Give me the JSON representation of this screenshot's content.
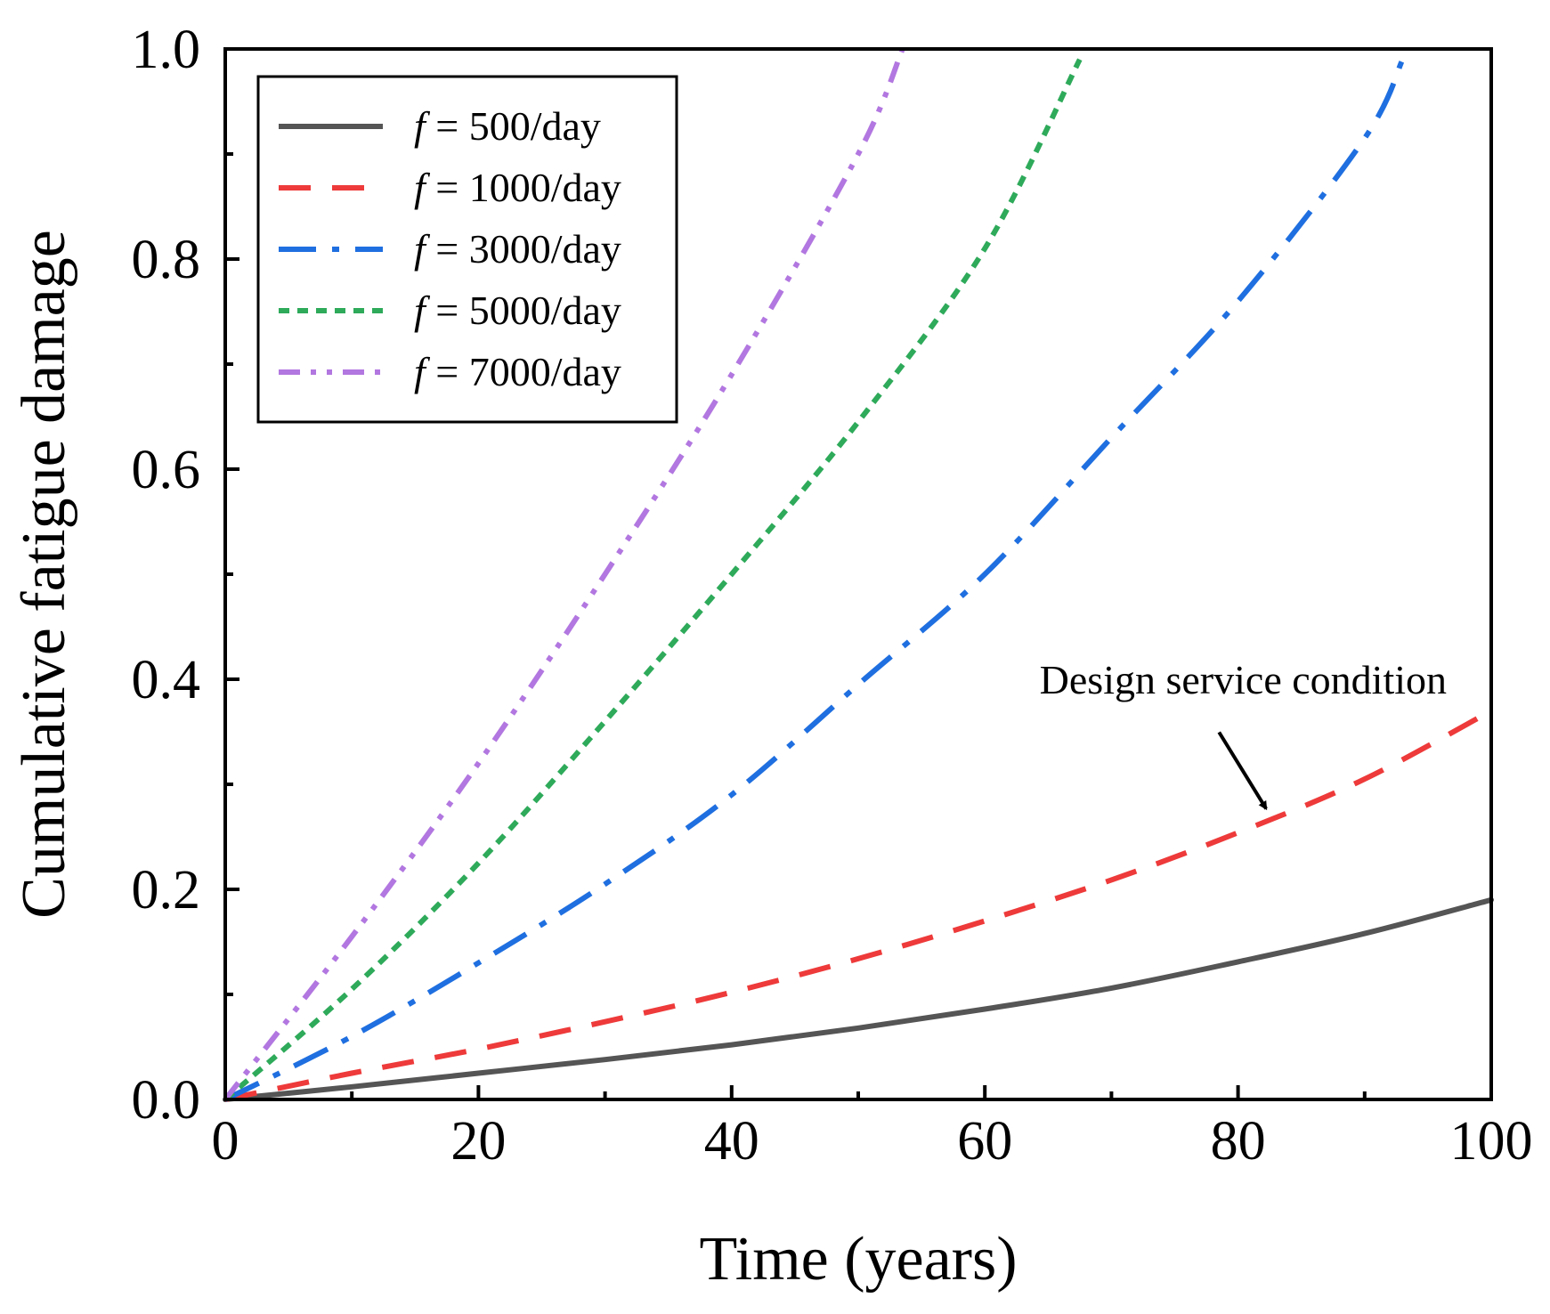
{
  "chart_data": {
    "type": "line",
    "title": "",
    "xlabel": "Time (years)",
    "ylabel": "Cumulative fatigue damage",
    "xlim": [
      0,
      100
    ],
    "ylim": [
      0,
      1.0
    ],
    "x_major_ticks": [
      0,
      20,
      40,
      60,
      80,
      100
    ],
    "x_tick_labels": [
      "0",
      "20",
      "40",
      "60",
      "80",
      "100"
    ],
    "x_minor_ticks": [
      10,
      30,
      50,
      70,
      90
    ],
    "y_major_ticks": [
      0,
      0.2,
      0.4,
      0.6,
      0.8,
      1.0
    ],
    "y_tick_labels": [
      "0.0",
      "0.2",
      "0.4",
      "0.6",
      "0.8",
      "1.0"
    ],
    "y_minor_ticks": [
      0.1,
      0.3,
      0.5,
      0.7,
      0.9
    ],
    "grid": false,
    "legend_position": "top-left",
    "series": [
      {
        "name": "f = 500/day",
        "legend_symbol": "f",
        "legend_rest": " = 500/day",
        "color": "#555555",
        "style": "solid",
        "x": [
          0,
          10,
          20,
          30,
          40,
          50,
          60,
          70,
          80,
          90,
          100
        ],
        "y": [
          0,
          0.012,
          0.025,
          0.038,
          0.052,
          0.068,
          0.086,
          0.106,
          0.131,
          0.158,
          0.19
        ]
      },
      {
        "name": "f = 1000/day",
        "legend_symbol": "f",
        "legend_rest": " = 1000/day",
        "color": "#ee3a3a",
        "style": "dash",
        "x": [
          0,
          10,
          20,
          30,
          40,
          50,
          60,
          70,
          80,
          90,
          100
        ],
        "y": [
          0,
          0.025,
          0.048,
          0.074,
          0.102,
          0.134,
          0.17,
          0.209,
          0.254,
          0.305,
          0.37
        ]
      },
      {
        "name": "f = 3000/day",
        "legend_symbol": "f",
        "legend_rest": " = 3000/day",
        "color": "#1f6fe0",
        "style": "dashdot",
        "x": [
          0,
          10,
          20,
          30,
          40,
          50,
          60,
          70,
          80,
          90,
          93
        ],
        "y": [
          0,
          0.06,
          0.13,
          0.205,
          0.29,
          0.395,
          0.5,
          0.63,
          0.76,
          0.915,
          0.99
        ]
      },
      {
        "name": "f = 5000/day",
        "legend_symbol": "f",
        "legend_rest": " = 5000/day",
        "color": "#2eaa5a",
        "style": "short-dash",
        "x": [
          0,
          10,
          20,
          30,
          40,
          50,
          60,
          67.5
        ],
        "y": [
          0,
          0.105,
          0.225,
          0.36,
          0.5,
          0.645,
          0.81,
          0.99
        ]
      },
      {
        "name": "f = 7000/day",
        "legend_symbol": "f",
        "legend_rest": " = 7000/day",
        "color": "#b277e0",
        "style": "dashdotdot",
        "x": [
          0,
          10,
          20,
          30,
          40,
          50,
          53.5
        ],
        "y": [
          0,
          0.155,
          0.32,
          0.5,
          0.69,
          0.9,
          1.0
        ]
      }
    ],
    "annotations": [
      {
        "text": "Design service condition",
        "target_x": 82.5,
        "target_y": 0.27,
        "text_anchor_x": 78.5,
        "text_anchor_y": 0.375
      }
    ]
  }
}
